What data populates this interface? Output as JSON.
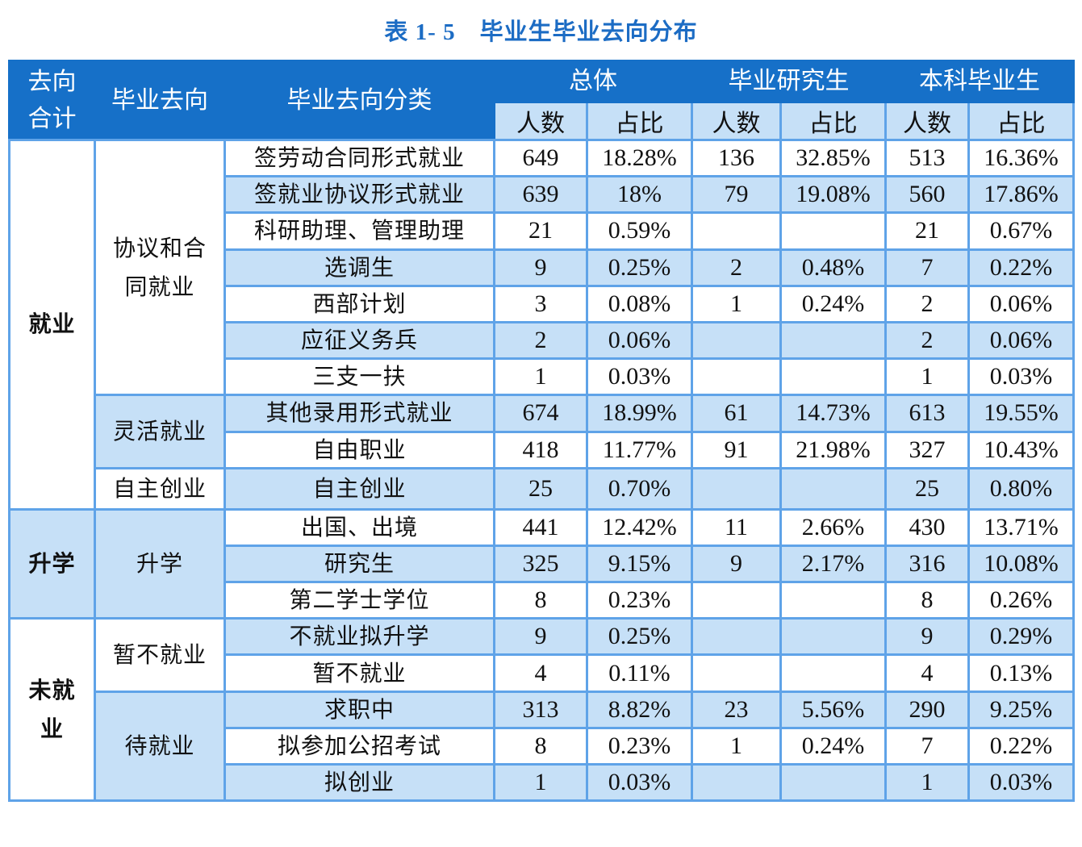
{
  "title": {
    "label": "表 1- 5",
    "text": "毕业生毕业去向分布"
  },
  "header": {
    "col_total": "去向合计",
    "col_destination": "毕业去向",
    "col_category": "毕业去向分类",
    "groups": [
      "总体",
      "毕业研究生",
      "本科毕业生"
    ],
    "sub": [
      "人数",
      "占比",
      "人数",
      "占比",
      "人数",
      "占比"
    ]
  },
  "colors": {
    "header_bg": "#1670C8",
    "subheader_bg": "#C6E0F7",
    "grid": "#5FA3E8",
    "title": "#1C6CC4"
  },
  "top_groups": [
    {
      "name": "就业",
      "rows": 10
    },
    {
      "name": "升学",
      "rows": 3
    },
    {
      "name": "未就业",
      "rows": 5
    }
  ],
  "mid_groups": [
    {
      "name": "协议和合同就业",
      "rows": 7
    },
    {
      "name": "灵活就业",
      "rows": 2
    },
    {
      "name": "自主创业",
      "rows": 1
    },
    {
      "name": "升学",
      "rows": 3
    },
    {
      "name": "暂不就业",
      "rows": 2
    },
    {
      "name": "待就业",
      "rows": 3
    }
  ],
  "rows": [
    {
      "category": "签劳动合同形式就业",
      "total_n": "649",
      "total_pct": "18.28%",
      "grad_n": "136",
      "grad_pct": "32.85%",
      "ug_n": "513",
      "ug_pct": "16.36%"
    },
    {
      "category": "签就业协议形式就业",
      "total_n": "639",
      "total_pct": "18%",
      "grad_n": "79",
      "grad_pct": "19.08%",
      "ug_n": "560",
      "ug_pct": "17.86%"
    },
    {
      "category": "科研助理、管理助理",
      "total_n": "21",
      "total_pct": "0.59%",
      "grad_n": "",
      "grad_pct": "",
      "ug_n": "21",
      "ug_pct": "0.67%"
    },
    {
      "category": "选调生",
      "total_n": "9",
      "total_pct": "0.25%",
      "grad_n": "2",
      "grad_pct": "0.48%",
      "ug_n": "7",
      "ug_pct": "0.22%"
    },
    {
      "category": "西部计划",
      "total_n": "3",
      "total_pct": "0.08%",
      "grad_n": "1",
      "grad_pct": "0.24%",
      "ug_n": "2",
      "ug_pct": "0.06%"
    },
    {
      "category": "应征义务兵",
      "total_n": "2",
      "total_pct": "0.06%",
      "grad_n": "",
      "grad_pct": "",
      "ug_n": "2",
      "ug_pct": "0.06%"
    },
    {
      "category": "三支一扶",
      "total_n": "1",
      "total_pct": "0.03%",
      "grad_n": "",
      "grad_pct": "",
      "ug_n": "1",
      "ug_pct": "0.03%"
    },
    {
      "category": "其他录用形式就业",
      "total_n": "674",
      "total_pct": "18.99%",
      "grad_n": "61",
      "grad_pct": "14.73%",
      "ug_n": "613",
      "ug_pct": "19.55%"
    },
    {
      "category": "自由职业",
      "total_n": "418",
      "total_pct": "11.77%",
      "grad_n": "91",
      "grad_pct": "21.98%",
      "ug_n": "327",
      "ug_pct": "10.43%"
    },
    {
      "category": "自主创业",
      "total_n": "25",
      "total_pct": "0.70%",
      "grad_n": "",
      "grad_pct": "",
      "ug_n": "25",
      "ug_pct": "0.80%"
    },
    {
      "category": "出国、出境",
      "total_n": "441",
      "total_pct": "12.42%",
      "grad_n": "11",
      "grad_pct": "2.66%",
      "ug_n": "430",
      "ug_pct": "13.71%"
    },
    {
      "category": "研究生",
      "total_n": "325",
      "total_pct": "9.15%",
      "grad_n": "9",
      "grad_pct": "2.17%",
      "ug_n": "316",
      "ug_pct": "10.08%"
    },
    {
      "category": "第二学士学位",
      "total_n": "8",
      "total_pct": "0.23%",
      "grad_n": "",
      "grad_pct": "",
      "ug_n": "8",
      "ug_pct": "0.26%"
    },
    {
      "category": "不就业拟升学",
      "total_n": "9",
      "total_pct": "0.25%",
      "grad_n": "",
      "grad_pct": "",
      "ug_n": "9",
      "ug_pct": "0.29%"
    },
    {
      "category": "暂不就业",
      "total_n": "4",
      "total_pct": "0.11%",
      "grad_n": "",
      "grad_pct": "",
      "ug_n": "4",
      "ug_pct": "0.13%"
    },
    {
      "category": "求职中",
      "total_n": "313",
      "total_pct": "8.82%",
      "grad_n": "23",
      "grad_pct": "5.56%",
      "ug_n": "290",
      "ug_pct": "9.25%"
    },
    {
      "category": "拟参加公招考试",
      "total_n": "8",
      "total_pct": "0.23%",
      "grad_n": "1",
      "grad_pct": "0.24%",
      "ug_n": "7",
      "ug_pct": "0.22%"
    },
    {
      "category": "拟创业",
      "total_n": "1",
      "total_pct": "0.03%",
      "grad_n": "",
      "grad_pct": "",
      "ug_n": "1",
      "ug_pct": "0.03%"
    }
  ]
}
